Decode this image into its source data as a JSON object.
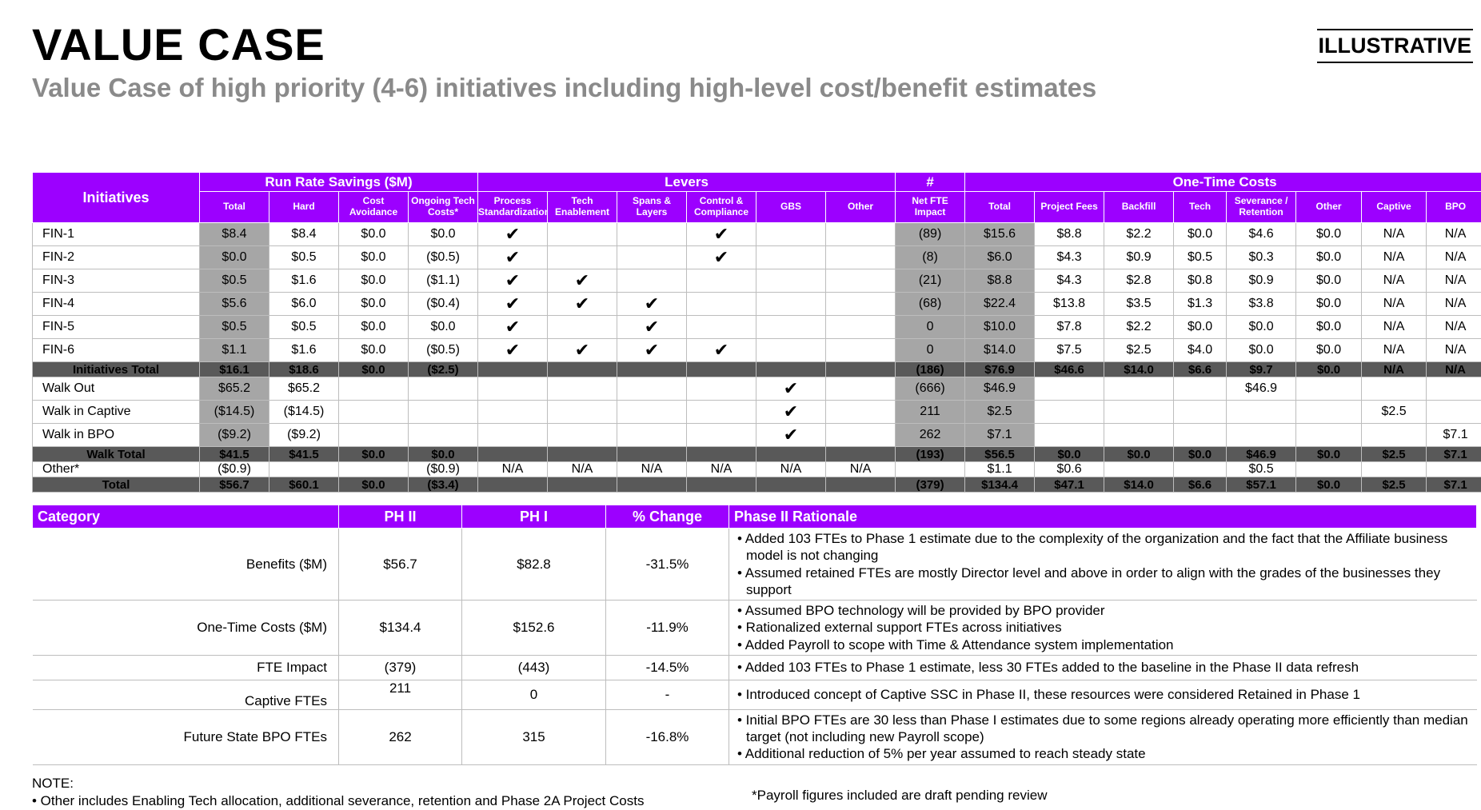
{
  "header": {
    "title": "VALUE CASE",
    "subtitle": "Value Case of high priority (4-6) initiatives including high-level cost/benefit estimates",
    "badge": "ILLUSTRATIVE"
  },
  "main_table": {
    "groups": {
      "initiatives": "Initiatives",
      "run_rate": "Run Rate Savings ($M)",
      "levers": "Levers",
      "count": "#",
      "one_time": "One-Time Costs"
    },
    "columns": [
      "Total",
      "Hard",
      "Cost Avoidance",
      "Ongoing Tech Costs*",
      "Process Standardization",
      "Tech Enablement",
      "Spans & Layers",
      "Control & Compliance",
      "GBS",
      "Other",
      "Net FTE Impact",
      "Total",
      "Project Fees",
      "Backfill",
      "Tech",
      "Severance / Retention",
      "Other",
      "Captive",
      "BPO"
    ],
    "rows": [
      {
        "type": "data",
        "cells": [
          "FIN-1",
          "$8.4",
          "$8.4",
          "$0.0",
          "$0.0",
          "✔",
          "",
          "",
          "✔",
          "",
          "",
          "(89)",
          "$15.6",
          "$8.8",
          "$2.2",
          "$0.0",
          "$4.6",
          "$0.0",
          "N/A",
          "N/A"
        ]
      },
      {
        "type": "data",
        "cells": [
          "FIN-2",
          "$0.0",
          "$0.5",
          "$0.0",
          "($0.5)",
          "✔",
          "",
          "",
          "✔",
          "",
          "",
          "(8)",
          "$6.0",
          "$4.3",
          "$0.9",
          "$0.5",
          "$0.3",
          "$0.0",
          "N/A",
          "N/A"
        ]
      },
      {
        "type": "data",
        "cells": [
          "FIN-3",
          "$0.5",
          "$1.6",
          "$0.0",
          "($1.1)",
          "✔",
          "✔",
          "",
          "",
          "",
          "",
          "(21)",
          "$8.8",
          "$4.3",
          "$2.8",
          "$0.8",
          "$0.9",
          "$0.0",
          "N/A",
          "N/A"
        ]
      },
      {
        "type": "data",
        "cells": [
          "FIN-4",
          "$5.6",
          "$6.0",
          "$0.0",
          "($0.4)",
          "✔",
          "✔",
          "✔",
          "",
          "",
          "",
          "(68)",
          "$22.4",
          "$13.8",
          "$3.5",
          "$1.3",
          "$3.8",
          "$0.0",
          "N/A",
          "N/A"
        ]
      },
      {
        "type": "data",
        "cells": [
          "FIN-5",
          "$0.5",
          "$0.5",
          "$0.0",
          "$0.0",
          "✔",
          "",
          "✔",
          "",
          "",
          "",
          "0",
          "$10.0",
          "$7.8",
          "$2.2",
          "$0.0",
          "$0.0",
          "$0.0",
          "N/A",
          "N/A"
        ]
      },
      {
        "type": "data",
        "cells": [
          "FIN-6",
          "$1.1",
          "$1.6",
          "$0.0",
          "($0.5)",
          "✔",
          "✔",
          "✔",
          "✔",
          "",
          "",
          "0",
          "$14.0",
          "$7.5",
          "$2.5",
          "$4.0",
          "$0.0",
          "$0.0",
          "N/A",
          "N/A"
        ]
      },
      {
        "type": "dark",
        "cells": [
          "Initiatives Total",
          "$16.1",
          "$18.6",
          "$0.0",
          "($2.5)",
          "",
          "",
          "",
          "",
          "",
          "",
          "(186)",
          "$76.9",
          "$46.6",
          "$14.0",
          "$6.6",
          "$9.7",
          "$0.0",
          "N/A",
          "N/A"
        ]
      },
      {
        "type": "data",
        "cells": [
          "Walk Out",
          "$65.2",
          "$65.2",
          "",
          "",
          "",
          "",
          "",
          "",
          "✔",
          "",
          "(666)",
          "$46.9",
          "",
          "",
          "",
          "$46.9",
          "",
          "",
          ""
        ]
      },
      {
        "type": "data",
        "cells": [
          "Walk in Captive",
          "($14.5)",
          "($14.5)",
          "",
          "",
          "",
          "",
          "",
          "",
          "✔",
          "",
          "211",
          "$2.5",
          "",
          "",
          "",
          "",
          "",
          "$2.5",
          ""
        ]
      },
      {
        "type": "data",
        "cells": [
          "Walk in BPO",
          "($9.2)",
          "($9.2)",
          "",
          "",
          "",
          "",
          "",
          "",
          "✔",
          "",
          "262",
          "$7.1",
          "",
          "",
          "",
          "",
          "",
          "",
          "$7.1"
        ]
      },
      {
        "type": "dark",
        "cells": [
          "Walk Total",
          "$41.5",
          "$41.5",
          "$0.0",
          "$0.0",
          "",
          "",
          "",
          "",
          "",
          "",
          "(193)",
          "$56.5",
          "$0.0",
          "$0.0",
          "$0.0",
          "$46.9",
          "$0.0",
          "$2.5",
          "$7.1"
        ]
      },
      {
        "type": "short",
        "cells": [
          "Other*",
          "($0.9)",
          "",
          "",
          "($0.9)",
          "N/A",
          "N/A",
          "N/A",
          "N/A",
          "N/A",
          "N/A",
          "",
          "$1.1",
          "$0.6",
          "",
          "",
          "$0.5",
          "",
          "",
          ""
        ]
      },
      {
        "type": "dark",
        "cells": [
          "Total",
          "$56.7",
          "$60.1",
          "$0.0",
          "($3.4)",
          "",
          "",
          "",
          "",
          "",
          "",
          "(379)",
          "$134.4",
          "$47.1",
          "$14.0",
          "$6.6",
          "$57.1",
          "$0.0",
          "$2.5",
          "$7.1"
        ]
      }
    ]
  },
  "comparison": {
    "headers": [
      "Category",
      "PH II",
      "PH I",
      "% Change",
      "Phase II Rationale"
    ],
    "rows": [
      {
        "category": "Benefits ($M)",
        "ph2": "$56.7",
        "ph1": "$82.8",
        "change": "-31.5%",
        "rationale": [
          "• Added 103 FTEs to Phase 1 estimate due to the complexity of the organization and the fact that the Affiliate business model is not changing",
          "• Assumed retained FTEs are mostly Director level and above in order to align with the grades of the businesses they support"
        ]
      },
      {
        "category": "One-Time Costs ($M)",
        "ph2": "$134.4",
        "ph1": "$152.6",
        "change": "-11.9%",
        "rationale": [
          "• Assumed BPO technology will be provided by BPO provider",
          "• Rationalized external support FTEs across initiatives",
          "• Added Payroll to scope with Time & Attendance system implementation"
        ]
      },
      {
        "category": "FTE Impact",
        "ph2": "(379)",
        "ph1": "(443)",
        "change": "-14.5%",
        "rationale": [
          "• Added 103 FTEs to Phase 1 estimate, less 30 FTEs added to the baseline in the Phase II data refresh"
        ]
      },
      {
        "category": "Captive FTEs",
        "ph2": "211",
        "ph1": "0",
        "change": "-",
        "rationale": [
          "• Introduced concept of Captive SSC in Phase II, these resources were considered Retained in Phase 1"
        ]
      },
      {
        "category": "Future State BPO FTEs",
        "ph2": "262",
        "ph1": "315",
        "change": "-16.8%",
        "rationale": [
          "• Initial BPO FTEs are 30 less than Phase I estimates due to some regions already operating more efficiently than median target (not including new Payroll scope)",
          "• Additional reduction of 5% per year assumed to reach steady state"
        ]
      }
    ]
  },
  "notes": {
    "label": "NOTE:",
    "line1": "• Other includes Enabling Tech allocation, additional severance, retention and Phase 2A Project Costs",
    "payroll": "*Payroll figures included are draft pending review"
  }
}
